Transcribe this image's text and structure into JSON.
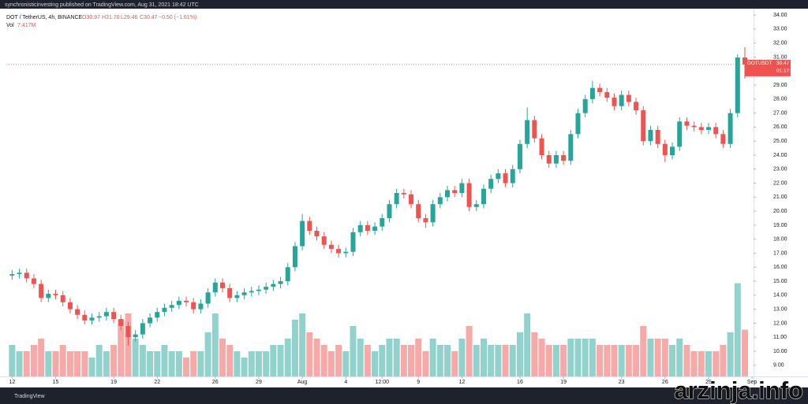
{
  "header": {
    "text": "synchronisticinvesting published on TradingView.com, Aug 31, 2021 18:42 UTC"
  },
  "footer": {
    "logo": "TradingView"
  },
  "watermark": "arzinja.info",
  "chart_data": {
    "type": "candlestick",
    "legend": {
      "title": "DOT / TetherUS, 4h, BINANCE",
      "open": "O30.97",
      "high": "H31.70",
      "low": "L29.46",
      "close": "C30.47",
      "change": "−0.50 (−1.61%)",
      "volume_label": "Vol",
      "volume": "7.417M"
    },
    "up_color": "#26a69a",
    "down_color": "#ef5350",
    "grid": false,
    "x": [
      12,
      12.5,
      13,
      13.5,
      14,
      14.5,
      15,
      15.5,
      16,
      16.5,
      17,
      17.5,
      18,
      18.5,
      19,
      19.5,
      20,
      20.5,
      21,
      21.5,
      22,
      22.5,
      23,
      23.5,
      24,
      24.5,
      25,
      25.5,
      26,
      26.5,
      27,
      27.5,
      28,
      28.5,
      29,
      29.5,
      30,
      30.5,
      31,
      31.5,
      32,
      32.5,
      33,
      33.5,
      34,
      34.5,
      35,
      35.5,
      36,
      36.5,
      37,
      37.5,
      38,
      38.5,
      39,
      39.5,
      40,
      40.5,
      41,
      41.5,
      42,
      42.5,
      43,
      43.5,
      44,
      44.5,
      45,
      45.5,
      46,
      46.5,
      47,
      47.5,
      48,
      48.5,
      49,
      49.5,
      50,
      50.5,
      51,
      51.5,
      52,
      52.5,
      53,
      53.5,
      54,
      54.5,
      55,
      55.5,
      56,
      56.5,
      57,
      57.5,
      58,
      58.5,
      59,
      59.5,
      60,
      60.5,
      61,
      61.5,
      62,
      62.5
    ],
    "open": [
      15.4,
      15.5,
      15.6,
      15.2,
      14.8,
      13.8,
      14.1,
      14.0,
      13.5,
      13.0,
      12.6,
      12.2,
      12.4,
      12.5,
      12.8,
      12.3,
      11.8,
      11.0,
      11.2,
      12.0,
      12.4,
      12.8,
      13.1,
      13.3,
      13.6,
      13.5,
      13.0,
      13.4,
      14.2,
      14.9,
      14.5,
      13.8,
      14.0,
      14.2,
      14.3,
      14.4,
      14.6,
      14.8,
      15.0,
      16.0,
      17.5,
      19.3,
      18.6,
      18.2,
      17.6,
      17.3,
      17.0,
      17.1,
      18.5,
      19.0,
      18.6,
      18.9,
      19.5,
      20.5,
      21.3,
      21.2,
      20.5,
      19.5,
      19.2,
      20.5,
      21.0,
      21.5,
      21.3,
      22.0,
      20.3,
      20.5,
      21.6,
      22.3,
      22.7,
      22.0,
      23.0,
      24.8,
      26.5,
      25.2,
      24.0,
      23.4,
      24.0,
      23.6,
      25.5,
      27.0,
      28.0,
      28.8,
      28.5,
      28.1,
      27.5,
      28.3,
      27.8,
      27.2,
      25.0,
      25.8,
      24.8,
      24.0,
      24.6,
      26.4,
      26.1,
      26.0,
      25.8,
      26.0,
      25.5,
      24.8,
      27.0,
      30.97
    ],
    "high": [
      15.8,
      15.9,
      15.9,
      15.5,
      15.1,
      14.4,
      14.4,
      14.3,
      13.8,
      13.3,
      12.9,
      12.7,
      12.8,
      13.1,
      13.1,
      12.6,
      12.1,
      11.5,
      12.3,
      12.7,
      13.1,
      13.4,
      13.6,
      13.9,
      13.9,
      13.8,
      13.7,
      14.5,
      15.2,
      15.2,
      14.8,
      14.3,
      14.5,
      14.6,
      14.7,
      14.9,
      15.1,
      15.3,
      16.3,
      17.8,
      19.8,
      19.6,
      18.9,
      18.5,
      17.9,
      17.6,
      17.4,
      18.8,
      19.3,
      19.3,
      19.2,
      19.8,
      20.8,
      21.6,
      21.6,
      21.5,
      20.8,
      19.8,
      20.8,
      21.3,
      21.8,
      21.8,
      22.3,
      22.3,
      20.8,
      21.9,
      22.6,
      23.0,
      23.0,
      23.3,
      25.1,
      27.4,
      26.8,
      25.5,
      24.3,
      24.3,
      24.3,
      25.8,
      27.3,
      28.3,
      29.3,
      29.1,
      28.8,
      28.4,
      28.6,
      28.6,
      28.1,
      27.5,
      26.1,
      26.1,
      25.1,
      24.9,
      26.7,
      26.7,
      26.4,
      26.3,
      26.3,
      26.3,
      25.8,
      27.3,
      31.2,
      31.7
    ],
    "low": [
      15.1,
      15.2,
      14.9,
      14.5,
      13.5,
      13.5,
      13.7,
      13.2,
      12.7,
      12.3,
      11.9,
      11.9,
      12.1,
      12.2,
      12.0,
      11.5,
      10.4,
      10.7,
      10.9,
      11.7,
      12.1,
      12.5,
      12.8,
      13.0,
      13.2,
      12.7,
      12.7,
      13.1,
      13.9,
      14.2,
      13.5,
      13.5,
      13.7,
      13.9,
      14.0,
      14.1,
      14.3,
      14.5,
      14.7,
      15.7,
      17.2,
      18.3,
      17.9,
      17.3,
      17.0,
      16.7,
      16.7,
      16.8,
      18.2,
      18.3,
      18.3,
      18.6,
      19.2,
      20.2,
      20.9,
      20.2,
      19.2,
      18.8,
      18.9,
      20.2,
      20.7,
      21.0,
      21.0,
      20.0,
      20.0,
      20.2,
      21.3,
      22.0,
      21.7,
      21.7,
      22.7,
      24.5,
      24.9,
      23.7,
      23.1,
      23.1,
      23.3,
      23.3,
      25.2,
      26.7,
      27.7,
      28.2,
      27.8,
      27.2,
      27.2,
      27.5,
      26.9,
      24.7,
      24.7,
      24.5,
      23.5,
      23.7,
      24.3,
      25.8,
      25.7,
      25.5,
      25.5,
      25.2,
      24.5,
      24.5,
      26.7,
      29.46
    ],
    "close": [
      15.5,
      15.6,
      15.2,
      14.8,
      13.8,
      14.1,
      14.0,
      13.5,
      13.0,
      12.6,
      12.2,
      12.4,
      12.5,
      12.8,
      12.3,
      11.8,
      11.0,
      11.2,
      12.0,
      12.4,
      12.8,
      13.1,
      13.3,
      13.6,
      13.5,
      13.0,
      13.4,
      14.2,
      14.9,
      14.5,
      13.8,
      14.0,
      14.2,
      14.3,
      14.4,
      14.6,
      14.8,
      15.0,
      16.0,
      17.5,
      19.3,
      18.6,
      18.2,
      17.6,
      17.3,
      17.0,
      17.1,
      18.5,
      19.0,
      18.6,
      18.9,
      19.5,
      20.5,
      21.3,
      21.2,
      20.5,
      19.5,
      19.2,
      20.5,
      21.0,
      21.5,
      21.3,
      22.0,
      20.3,
      20.5,
      21.6,
      22.3,
      22.7,
      22.0,
      23.0,
      24.8,
      26.5,
      25.2,
      24.0,
      23.4,
      24.0,
      23.6,
      25.5,
      27.0,
      28.0,
      28.8,
      28.5,
      28.1,
      27.5,
      28.3,
      27.8,
      27.2,
      25.0,
      25.8,
      24.8,
      24.0,
      24.6,
      26.4,
      26.1,
      26.0,
      25.8,
      26.0,
      25.5,
      24.8,
      27.0,
      30.97,
      30.47
    ],
    "volume": [
      5,
      4,
      4,
      5,
      6,
      4,
      4,
      5,
      4,
      4,
      4,
      3,
      5,
      4,
      5,
      9,
      10,
      6,
      5,
      4,
      4,
      5,
      4,
      4,
      3,
      4,
      4,
      7,
      10,
      6,
      5,
      4,
      3,
      4,
      4,
      4,
      5,
      5,
      6,
      9,
      10,
      7,
      6,
      5,
      4,
      5,
      4,
      8,
      6,
      5,
      4,
      5,
      6,
      6,
      5,
      5,
      6,
      4,
      6,
      5,
      5,
      4,
      6,
      8,
      5,
      6,
      5,
      5,
      5,
      5,
      7,
      10,
      7,
      6,
      5,
      5,
      5,
      6,
      6,
      6,
      6,
      5,
      5,
      5,
      5,
      5,
      5,
      8,
      6,
      6,
      6,
      5,
      6,
      5,
      4,
      4,
      4,
      4,
      5,
      7,
      14.8,
      7.417
    ],
    "xlim": [
      11.6,
      63.1
    ],
    "xticks": [
      12,
      15,
      19,
      22,
      26,
      29,
      {
        "value": 32,
        "label": "Aug"
      },
      {
        "value": 35,
        "label": "4"
      },
      {
        "value": 37.5,
        "label": "12:00"
      },
      {
        "value": 40,
        "label": "9"
      },
      {
        "value": 43,
        "label": "12"
      },
      {
        "value": 47,
        "label": "16"
      },
      {
        "value": 50,
        "label": "19"
      },
      {
        "value": 54,
        "label": "23"
      },
      {
        "value": 57,
        "label": "26"
      },
      {
        "value": 60,
        "label": "29"
      },
      {
        "value": 63,
        "label": "Sep"
      }
    ],
    "ylim": [
      8.2,
      34.4
    ],
    "yticks": [
      {
        "value": 9,
        "label": "9.00"
      },
      {
        "value": 10,
        "label": "10.00"
      },
      {
        "value": 11,
        "label": "11.00"
      },
      {
        "value": 12,
        "label": "12.00"
      },
      {
        "value": 13,
        "label": "13.00"
      },
      {
        "value": 14,
        "label": "14.00"
      },
      {
        "value": 15,
        "label": "15.00"
      },
      {
        "value": 16,
        "label": "16.00"
      },
      {
        "value": 17,
        "label": "17.00"
      },
      {
        "value": 18,
        "label": "18.00"
      },
      {
        "value": 19,
        "label": "19.00"
      },
      {
        "value": 20,
        "label": "20.00"
      },
      {
        "value": 21,
        "label": "21.00"
      },
      {
        "value": 22,
        "label": "22.00"
      },
      {
        "value": 23,
        "label": "23.00"
      },
      {
        "value": 24,
        "label": "24.00"
      },
      {
        "value": 25,
        "label": "25.00"
      },
      {
        "value": 26,
        "label": "26.00"
      },
      {
        "value": 27,
        "label": "27.00"
      },
      {
        "value": 28,
        "label": "28.00"
      },
      {
        "value": 29,
        "label": "29.00"
      },
      {
        "value": 30,
        "label": "30.00"
      },
      {
        "value": 31,
        "label": "31.00"
      },
      {
        "value": 32,
        "label": "32.00"
      },
      {
        "value": 33,
        "label": "33.00"
      },
      {
        "value": 34,
        "label": "34.00"
      }
    ],
    "price_tag": {
      "symbol": "DOTUSDT",
      "value": 30.47,
      "label": "30.47",
      "countdown": "01:17:11"
    }
  }
}
